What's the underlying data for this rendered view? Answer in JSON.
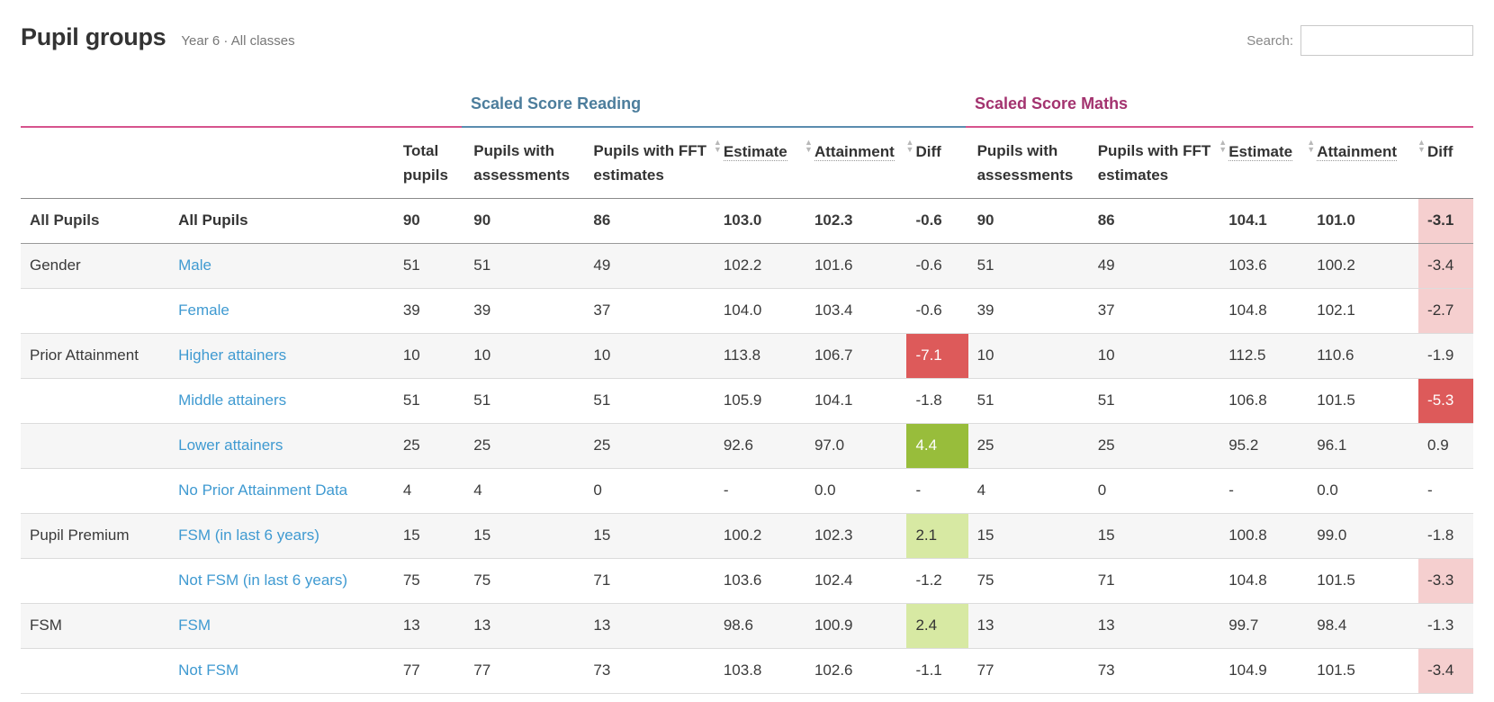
{
  "header": {
    "title": "Pupil groups",
    "subtitle": "Year 6 · All classes"
  },
  "search": {
    "label": "Search:",
    "value": "",
    "placeholder": ""
  },
  "groups": {
    "reading": "Scaled Score Reading",
    "maths": "Scaled Score Maths"
  },
  "columns": {
    "total_pupils": "Total pupils",
    "reading_assessments": "Pupils with assessments",
    "reading_fft": "Pupils with FFT estimates",
    "reading_estimate": "Estimate",
    "reading_attainment": "Attainment",
    "reading_diff": "Diff",
    "maths_assessments": "Pupils with assessments",
    "maths_fft": "Pupils with FFT estimates",
    "maths_estimate": "Estimate",
    "maths_attainment": "Attainment",
    "maths_diff": "Diff"
  },
  "colors": {
    "diff_strong_negative": "#dd5a5a",
    "diff_weak_negative": "#f5cfcf",
    "diff_strong_positive": "#98bd3b",
    "diff_weak_positive": "#d7e9a3",
    "reading_accent": "#4c7d9c",
    "maths_accent": "#a3336f",
    "link": "#3f9ad1"
  },
  "rows": [
    {
      "category": "All Pupils",
      "subgroup": "All Pupils",
      "total": "90",
      "r_assess": "90",
      "r_fft": "86",
      "r_est": "103.0",
      "r_att": "102.3",
      "r_diff": "-0.6",
      "m_assess": "90",
      "m_fft": "86",
      "m_est": "104.1",
      "m_att": "101.0",
      "m_diff": "-3.1"
    },
    {
      "category": "Gender",
      "subgroup": "Male",
      "total": "51",
      "r_assess": "51",
      "r_fft": "49",
      "r_est": "102.2",
      "r_att": "101.6",
      "r_diff": "-0.6",
      "m_assess": "51",
      "m_fft": "49",
      "m_est": "103.6",
      "m_att": "100.2",
      "m_diff": "-3.4"
    },
    {
      "category": "",
      "subgroup": "Female",
      "total": "39",
      "r_assess": "39",
      "r_fft": "37",
      "r_est": "104.0",
      "r_att": "103.4",
      "r_diff": "-0.6",
      "m_assess": "39",
      "m_fft": "37",
      "m_est": "104.8",
      "m_att": "102.1",
      "m_diff": "-2.7"
    },
    {
      "category": "Prior Attainment",
      "subgroup": "Higher attainers",
      "total": "10",
      "r_assess": "10",
      "r_fft": "10",
      "r_est": "113.8",
      "r_att": "106.7",
      "r_diff": "-7.1",
      "m_assess": "10",
      "m_fft": "10",
      "m_est": "112.5",
      "m_att": "110.6",
      "m_diff": "-1.9"
    },
    {
      "category": "",
      "subgroup": "Middle attainers",
      "total": "51",
      "r_assess": "51",
      "r_fft": "51",
      "r_est": "105.9",
      "r_att": "104.1",
      "r_diff": "-1.8",
      "m_assess": "51",
      "m_fft": "51",
      "m_est": "106.8",
      "m_att": "101.5",
      "m_diff": "-5.3"
    },
    {
      "category": "",
      "subgroup": "Lower attainers",
      "total": "25",
      "r_assess": "25",
      "r_fft": "25",
      "r_est": "92.6",
      "r_att": "97.0",
      "r_diff": "4.4",
      "m_assess": "25",
      "m_fft": "25",
      "m_est": "95.2",
      "m_att": "96.1",
      "m_diff": "0.9"
    },
    {
      "category": "",
      "subgroup": "No Prior Attainment Data",
      "total": "4",
      "r_assess": "4",
      "r_fft": "0",
      "r_est": "-",
      "r_att": "0.0",
      "r_diff": "-",
      "m_assess": "4",
      "m_fft": "0",
      "m_est": "-",
      "m_att": "0.0",
      "m_diff": "-"
    },
    {
      "category": "Pupil Premium",
      "subgroup": "FSM (in last 6 years)",
      "total": "15",
      "r_assess": "15",
      "r_fft": "15",
      "r_est": "100.2",
      "r_att": "102.3",
      "r_diff": "2.1",
      "m_assess": "15",
      "m_fft": "15",
      "m_est": "100.8",
      "m_att": "99.0",
      "m_diff": "-1.8"
    },
    {
      "category": "",
      "subgroup": "Not FSM (in last 6 years)",
      "total": "75",
      "r_assess": "75",
      "r_fft": "71",
      "r_est": "103.6",
      "r_att": "102.4",
      "r_diff": "-1.2",
      "m_assess": "75",
      "m_fft": "71",
      "m_est": "104.8",
      "m_att": "101.5",
      "m_diff": "-3.3"
    },
    {
      "category": "FSM",
      "subgroup": "FSM",
      "total": "13",
      "r_assess": "13",
      "r_fft": "13",
      "r_est": "98.6",
      "r_att": "100.9",
      "r_diff": "2.4",
      "m_assess": "13",
      "m_fft": "13",
      "m_est": "99.7",
      "m_att": "98.4",
      "m_diff": "-1.3"
    },
    {
      "category": "",
      "subgroup": "Not FSM",
      "total": "77",
      "r_assess": "77",
      "r_fft": "73",
      "r_est": "103.8",
      "r_att": "102.6",
      "r_diff": "-1.1",
      "m_assess": "77",
      "m_fft": "73",
      "m_est": "104.9",
      "m_att": "101.5",
      "m_diff": "-3.4"
    }
  ]
}
